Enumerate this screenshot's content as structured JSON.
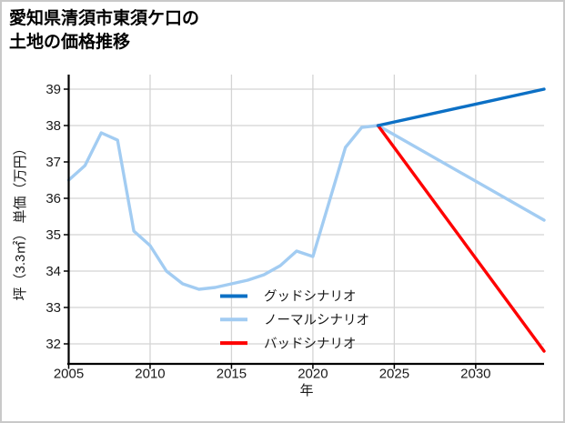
{
  "window": {
    "background": "#ffffff",
    "border_color": "#c9c9c9"
  },
  "title": {
    "line1": "愛知県清須市東須ケ口の",
    "line2": "土地の価格推移"
  },
  "chart_data": {
    "type": "line",
    "title": "愛知県清須市東須ケ口の土地の価格推移",
    "xlabel": "年",
    "ylabel": "坪（3.3㎡） 単価（万円）",
    "xlim": [
      2005,
      2034.2
    ],
    "ylim": [
      31.45,
      39.4
    ],
    "x_ticks": [
      2005,
      2010,
      2015,
      2020,
      2025,
      2030
    ],
    "y_ticks": [
      32,
      33,
      34,
      35,
      36,
      37,
      38,
      39
    ],
    "grid": true,
    "grid_color": "#d4d4d4",
    "axis_color": "#000000",
    "text_color": "#1a1a1a",
    "legend_position": "lower-center",
    "series": [
      {
        "key": "good-scenario",
        "name": "グッドシナリオ",
        "color": "#0c70c5",
        "x": [
          2024,
          2034.2
        ],
        "values": [
          38.0,
          39.0
        ]
      },
      {
        "key": "normal-scenario",
        "name": "ノーマルシナリオ",
        "color": "#a2ccf2",
        "x": [
          2005,
          2006,
          2007,
          2008,
          2009,
          2010,
          2011,
          2012,
          2013,
          2014,
          2015,
          2016,
          2017,
          2018,
          2019,
          2020,
          2021,
          2022,
          2023,
          2024,
          2034.2
        ],
        "values": [
          36.5,
          36.9,
          37.8,
          37.6,
          35.1,
          34.7,
          34.0,
          33.65,
          33.5,
          33.55,
          33.65,
          33.75,
          33.9,
          34.15,
          34.55,
          34.4,
          35.9,
          37.4,
          37.95,
          38.0,
          35.4
        ]
      },
      {
        "key": "bad-scenario",
        "name": "バッドシナリオ",
        "color": "#fe0000",
        "x": [
          2024,
          2034.2
        ],
        "values": [
          38.0,
          31.8
        ]
      }
    ]
  }
}
